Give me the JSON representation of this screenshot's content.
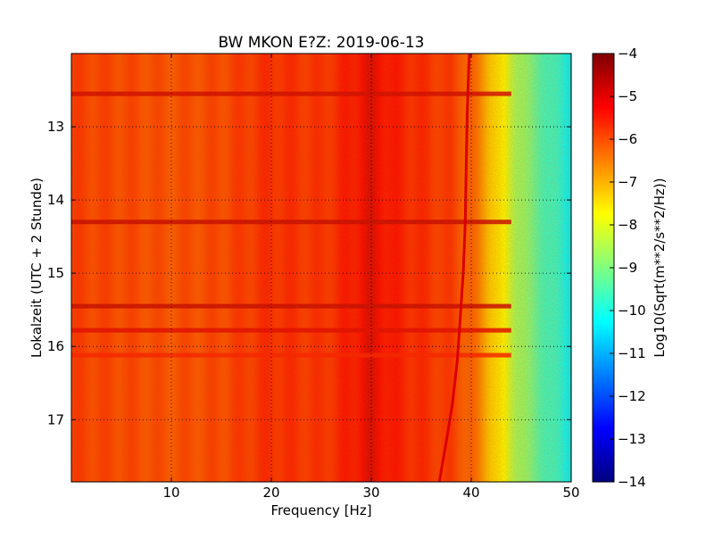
{
  "chart_data": {
    "type": "heatmap",
    "title": "BW MKON E?Z: 2019-06-13",
    "xlabel": "Frequency [Hz]",
    "ylabel": "Lokalzeit (UTC + 2 Stunde)",
    "xlim": [
      0,
      50
    ],
    "ylim": [
      17.85,
      12.0
    ],
    "x_ticks": [
      10,
      20,
      30,
      40,
      50
    ],
    "y_ticks": [
      13,
      14,
      15,
      16,
      17
    ],
    "grid": true,
    "colorbar": {
      "label": "Log10(Sqrt(m**2/s**2/Hz))",
      "range": [
        -14,
        -4
      ],
      "ticks": [
        -4,
        -5,
        -6,
        -7,
        -8,
        -9,
        -10,
        -11,
        -12,
        -13,
        -14
      ],
      "colormap": "jet"
    },
    "spectral_profile": {
      "frequency_hz": [
        0,
        5,
        10,
        15,
        20,
        25,
        28,
        30,
        32,
        35,
        38,
        40,
        42,
        44,
        46,
        48,
        50
      ],
      "log10_amplitude": [
        -5.8,
        -5.9,
        -6.0,
        -5.9,
        -5.6,
        -5.7,
        -5.4,
        -5.0,
        -5.4,
        -5.6,
        -5.8,
        -6.2,
        -7.2,
        -8.3,
        -9.2,
        -9.8,
        -10.3
      ]
    },
    "horizontal_bands": [
      {
        "time": 12.55,
        "level": -4.8
      },
      {
        "time": 14.3,
        "level": -4.7
      },
      {
        "time": 15.45,
        "level": -4.7
      },
      {
        "time": 15.78,
        "level": -5.0
      },
      {
        "time": 16.12,
        "level": -5.5
      }
    ],
    "peak_track": {
      "time": [
        12.0,
        12.8,
        13.5,
        14.3,
        15.0,
        15.6,
        16.2,
        16.8,
        17.3,
        17.85
      ],
      "frequency_hz": [
        39.8,
        39.6,
        39.5,
        39.4,
        39.2,
        38.9,
        38.6,
        38.1,
        37.5,
        36.8
      ]
    }
  }
}
